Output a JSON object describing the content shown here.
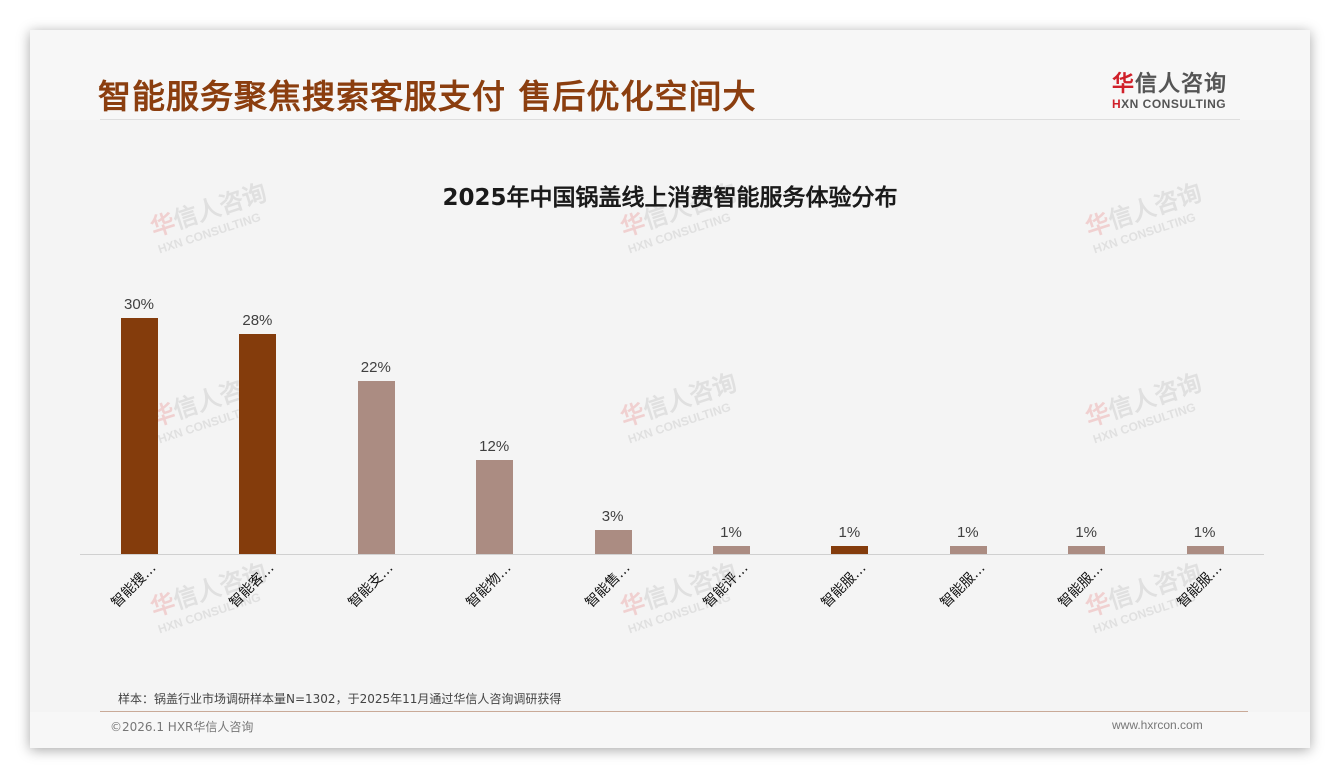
{
  "header": {
    "title": "智能服务聚焦搜索客服支付 售后优化空间大",
    "logo": {
      "cn_first": "华",
      "cn_rest": "信人咨询",
      "en_first": "H",
      "en_rest": "XN CONSULTING"
    }
  },
  "colors": {
    "highlight": "#843c0c",
    "normal": "#ab8c82",
    "title": "#8b3e0f"
  },
  "chart_data": {
    "type": "bar",
    "title": "2025年中国锅盖线上消费智能服务体验分布",
    "categories": [
      "智能搜…",
      "智能客…",
      "智能支…",
      "智能物…",
      "智能售…",
      "智能评…",
      "智能服…",
      "智能服…",
      "智能服…",
      "智能服…"
    ],
    "values": [
      30,
      28,
      22,
      12,
      3,
      1,
      1,
      1,
      1,
      1
    ],
    "value_labels": [
      "30%",
      "28%",
      "22%",
      "12%",
      "3%",
      "1%",
      "1%",
      "1%",
      "1%",
      "1%"
    ],
    "highlighted": [
      true,
      true,
      false,
      false,
      false,
      false,
      true,
      false,
      false,
      false
    ],
    "xlabel": "",
    "ylabel": "",
    "ylim": [
      0,
      32
    ],
    "grid": false,
    "legend": "none",
    "unit": "%"
  },
  "footer": {
    "sample_note": "样本：锅盖行业市场调研样本量N=1302，于2025年11月通过华信人咨询调研获得",
    "copyright": "©2026.1 HXR华信人咨询",
    "website": "www.hxrcon.com"
  },
  "watermark": {
    "cn_first": "华",
    "cn_rest": "信人咨询",
    "en": "HXN CONSULTING"
  }
}
